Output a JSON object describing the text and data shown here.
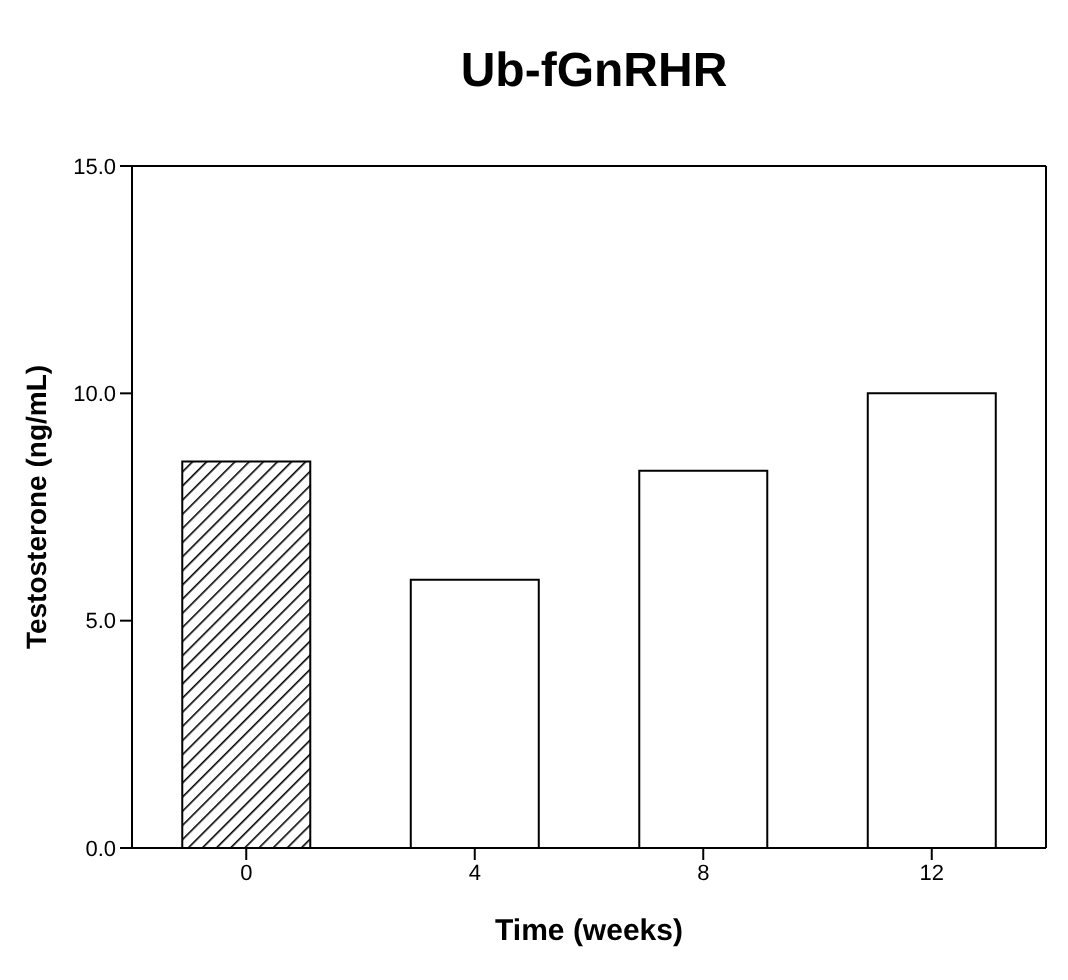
{
  "chart_data": {
    "type": "bar",
    "title": "Ub-fGnRHR",
    "xlabel": "Time (weeks)",
    "ylabel": "Testosterone (ng/mL)",
    "categories": [
      "0",
      "4",
      "8",
      "12"
    ],
    "values": [
      8.5,
      5.9,
      8.3,
      10.0
    ],
    "colors": [
      "#000000",
      "#ffffff",
      "#ffffff",
      "#ffffff"
    ],
    "ylim": [
      0,
      15
    ],
    "yticks": [
      {
        "value": 0,
        "label": "0.0"
      },
      {
        "value": 5,
        "label": "5.0"
      },
      {
        "value": 10,
        "label": "10.0"
      },
      {
        "value": 15,
        "label": "15.0"
      }
    ],
    "grid": false
  }
}
